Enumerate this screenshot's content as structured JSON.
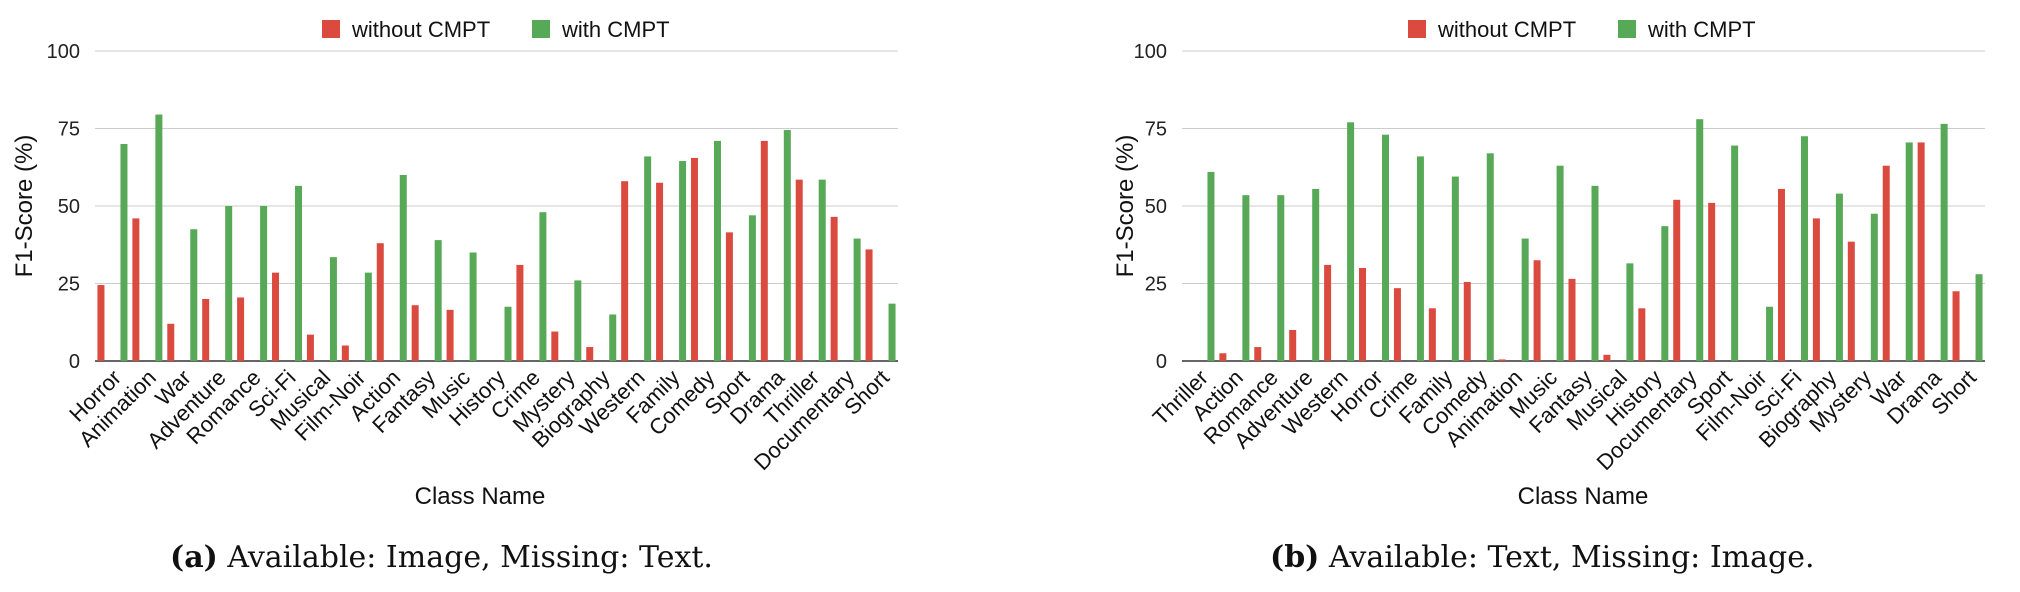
{
  "colors": {
    "without": "#db4a3f",
    "with": "#57a857",
    "grid": "#cccccc",
    "axis": "#333333"
  },
  "chart_data": [
    {
      "type": "bar",
      "legend": [
        "without CMPT",
        "with CMPT"
      ],
      "xlabel": "Class Name",
      "ylabel": "F1-Score (%)",
      "ylim": [
        0,
        100
      ],
      "yticks": [
        0,
        25,
        50,
        75,
        100
      ],
      "categories": [
        "Horror",
        "Animation",
        "War",
        "Adventure",
        "Romance",
        "Sci-Fi",
        "Musical",
        "Film-Noir",
        "Action",
        "Fantasy",
        "Music",
        "History",
        "Crime",
        "Mystery",
        "Biography",
        "Western",
        "Family",
        "Comedy",
        "Sport",
        "Drama",
        "Thriller",
        "Documentary",
        "Short"
      ],
      "series": [
        {
          "name": "without CMPT",
          "values": [
            24.5,
            46,
            12,
            20,
            20.5,
            28.5,
            8.5,
            5,
            38,
            18,
            16.5,
            0,
            31,
            9.5,
            4.5,
            58,
            57.5,
            65.5,
            41.5,
            71,
            58.5,
            46.5,
            36
          ]
        },
        {
          "name": "with CMPT",
          "values": [
            70,
            79.5,
            42.5,
            50,
            50,
            56.5,
            33.5,
            28.5,
            60,
            39,
            35,
            17.5,
            48,
            26,
            15,
            66,
            64.5,
            71,
            47,
            74.5,
            58.5,
            39.5,
            18.5
          ]
        }
      ]
    },
    {
      "type": "bar",
      "legend": [
        "without CMPT",
        "with CMPT"
      ],
      "xlabel": "Class Name",
      "ylabel": "F1-Score (%)",
      "ylim": [
        0,
        100
      ],
      "yticks": [
        0,
        25,
        50,
        75,
        100
      ],
      "categories": [
        "Thriller",
        "Action",
        "Romance",
        "Adventure",
        "Western",
        "Horror",
        "Crime",
        "Family",
        "Comedy",
        "Animation",
        "Music",
        "Fantasy",
        "Musical",
        "History",
        "Documentary",
        "Sport",
        "Film-Noir",
        "Sci-Fi",
        "Biography",
        "Mystery",
        "War",
        "Drama",
        "Short"
      ],
      "series": [
        {
          "name": "without CMPT",
          "values": [
            0,
            2.5,
            4.5,
            10,
            31,
            30,
            23.5,
            17,
            25.5,
            0.5,
            32.5,
            26.5,
            2,
            17,
            52,
            51,
            0,
            55.5,
            46,
            38.5,
            63,
            70.5,
            22.5
          ]
        },
        {
          "name": "with CMPT",
          "values": [
            61,
            53.5,
            53.5,
            55.5,
            77,
            73,
            66,
            59.5,
            67,
            39.5,
            63,
            56.5,
            31.5,
            43.5,
            78,
            69.5,
            17.5,
            72.5,
            54,
            47.5,
            70.5,
            76.5,
            28
          ]
        }
      ]
    }
  ],
  "captions": [
    {
      "label": "(a)",
      "text": "Available: Image, Missing: Text."
    },
    {
      "label": "(b)",
      "text": "Available: Text, Missing: Image."
    }
  ]
}
